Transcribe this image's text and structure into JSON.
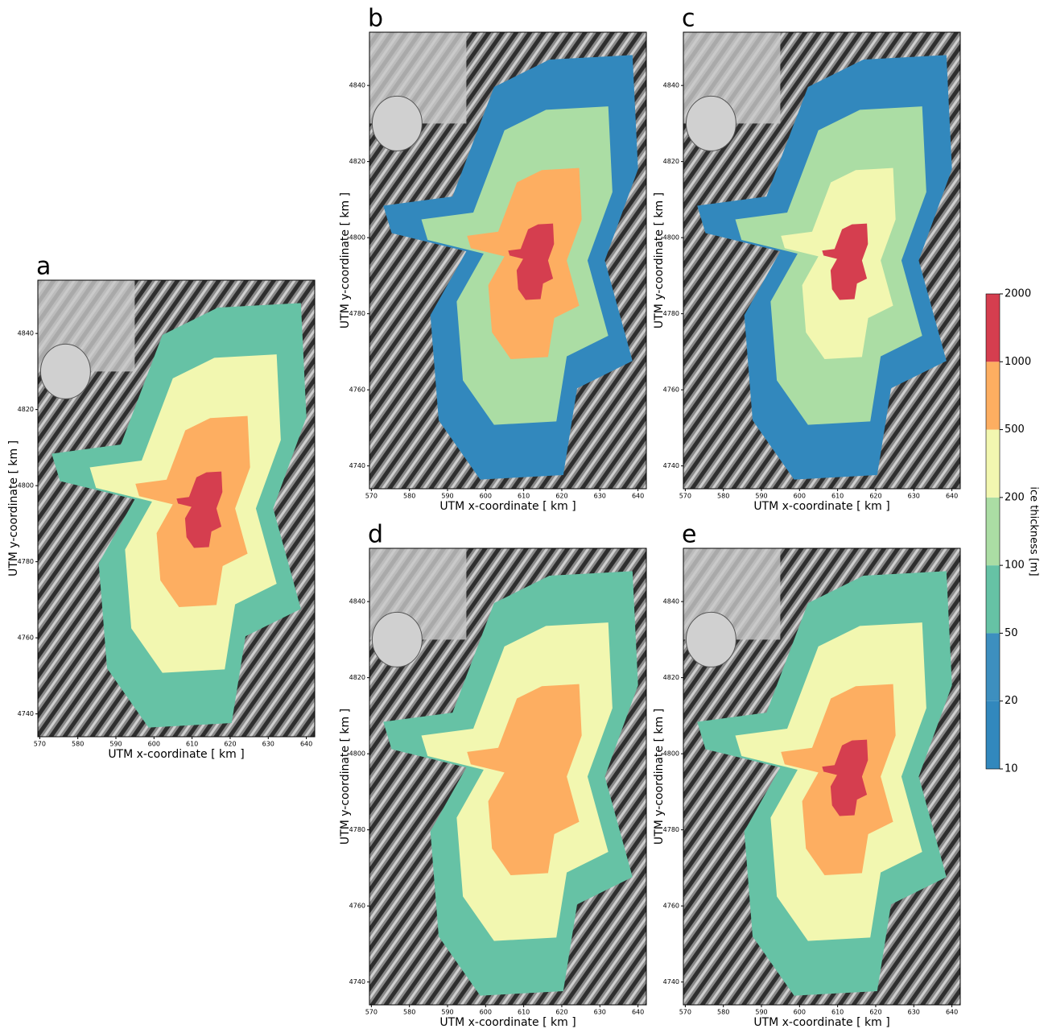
{
  "chart_data": [
    {
      "type": "map",
      "panel": "a",
      "xlabel": "UTM x-coordinate [ km ]",
      "ylabel": "UTM y-coordinate [ km ]",
      "xlim": [
        569.5,
        642.2
      ],
      "ylim": [
        4734,
        4854
      ],
      "xticks": [
        570,
        580,
        590,
        600,
        610,
        620,
        630,
        640
      ],
      "yticks": [
        4740,
        4760,
        4780,
        4800,
        4820,
        4840
      ]
    },
    {
      "type": "map",
      "panel": "b",
      "xlabel": "UTM x-coordinate [ km ]",
      "ylabel": "UTM y-coordinate [ km ]",
      "xlim": [
        569.5,
        642.2
      ],
      "ylim": [
        4734,
        4854
      ],
      "xticks": [
        570,
        580,
        590,
        600,
        610,
        620,
        630,
        640
      ],
      "yticks": [
        4740,
        4760,
        4780,
        4800,
        4820,
        4840
      ]
    },
    {
      "type": "map",
      "panel": "c",
      "xlabel": "UTM x-coordinate [ km ]",
      "ylabel": "UTM y-coordinate [ km ]",
      "xlim": [
        569.5,
        642.2
      ],
      "ylim": [
        4734,
        4854
      ],
      "xticks": [
        570,
        580,
        590,
        600,
        610,
        620,
        630,
        640
      ],
      "yticks": [
        4740,
        4760,
        4780,
        4800,
        4820,
        4840
      ]
    },
    {
      "type": "map",
      "panel": "d",
      "xlabel": "UTM x-coordinate [ km ]",
      "ylabel": "UTM y-coordinate [ km ]",
      "xlim": [
        569.5,
        642.2
      ],
      "ylim": [
        4734,
        4854
      ],
      "xticks": [
        570,
        580,
        590,
        600,
        610,
        620,
        630,
        640
      ],
      "yticks": [
        4740,
        4760,
        4780,
        4800,
        4820,
        4840
      ]
    },
    {
      "type": "map",
      "panel": "e",
      "xlabel": "UTM x-coordinate [ km ]",
      "ylabel": "UTM y-coordinate [ km ]",
      "xlim": [
        569.5,
        642.2
      ],
      "ylim": [
        4734,
        4854
      ],
      "xticks": [
        570,
        580,
        590,
        600,
        610,
        620,
        630,
        640
      ],
      "yticks": [
        4740,
        4760,
        4780,
        4800,
        4820,
        4840
      ]
    },
    {
      "type": "colorbar",
      "label": "ice thickness [m]",
      "ticks": [
        10,
        20,
        50,
        100,
        200,
        500,
        1000,
        2000
      ],
      "colors": [
        "#3288bd",
        "#3d8fbf",
        "#66c2a5",
        "#abdda4",
        "#f2f7b0",
        "#fdae61",
        "#d53e4f"
      ]
    }
  ]
}
